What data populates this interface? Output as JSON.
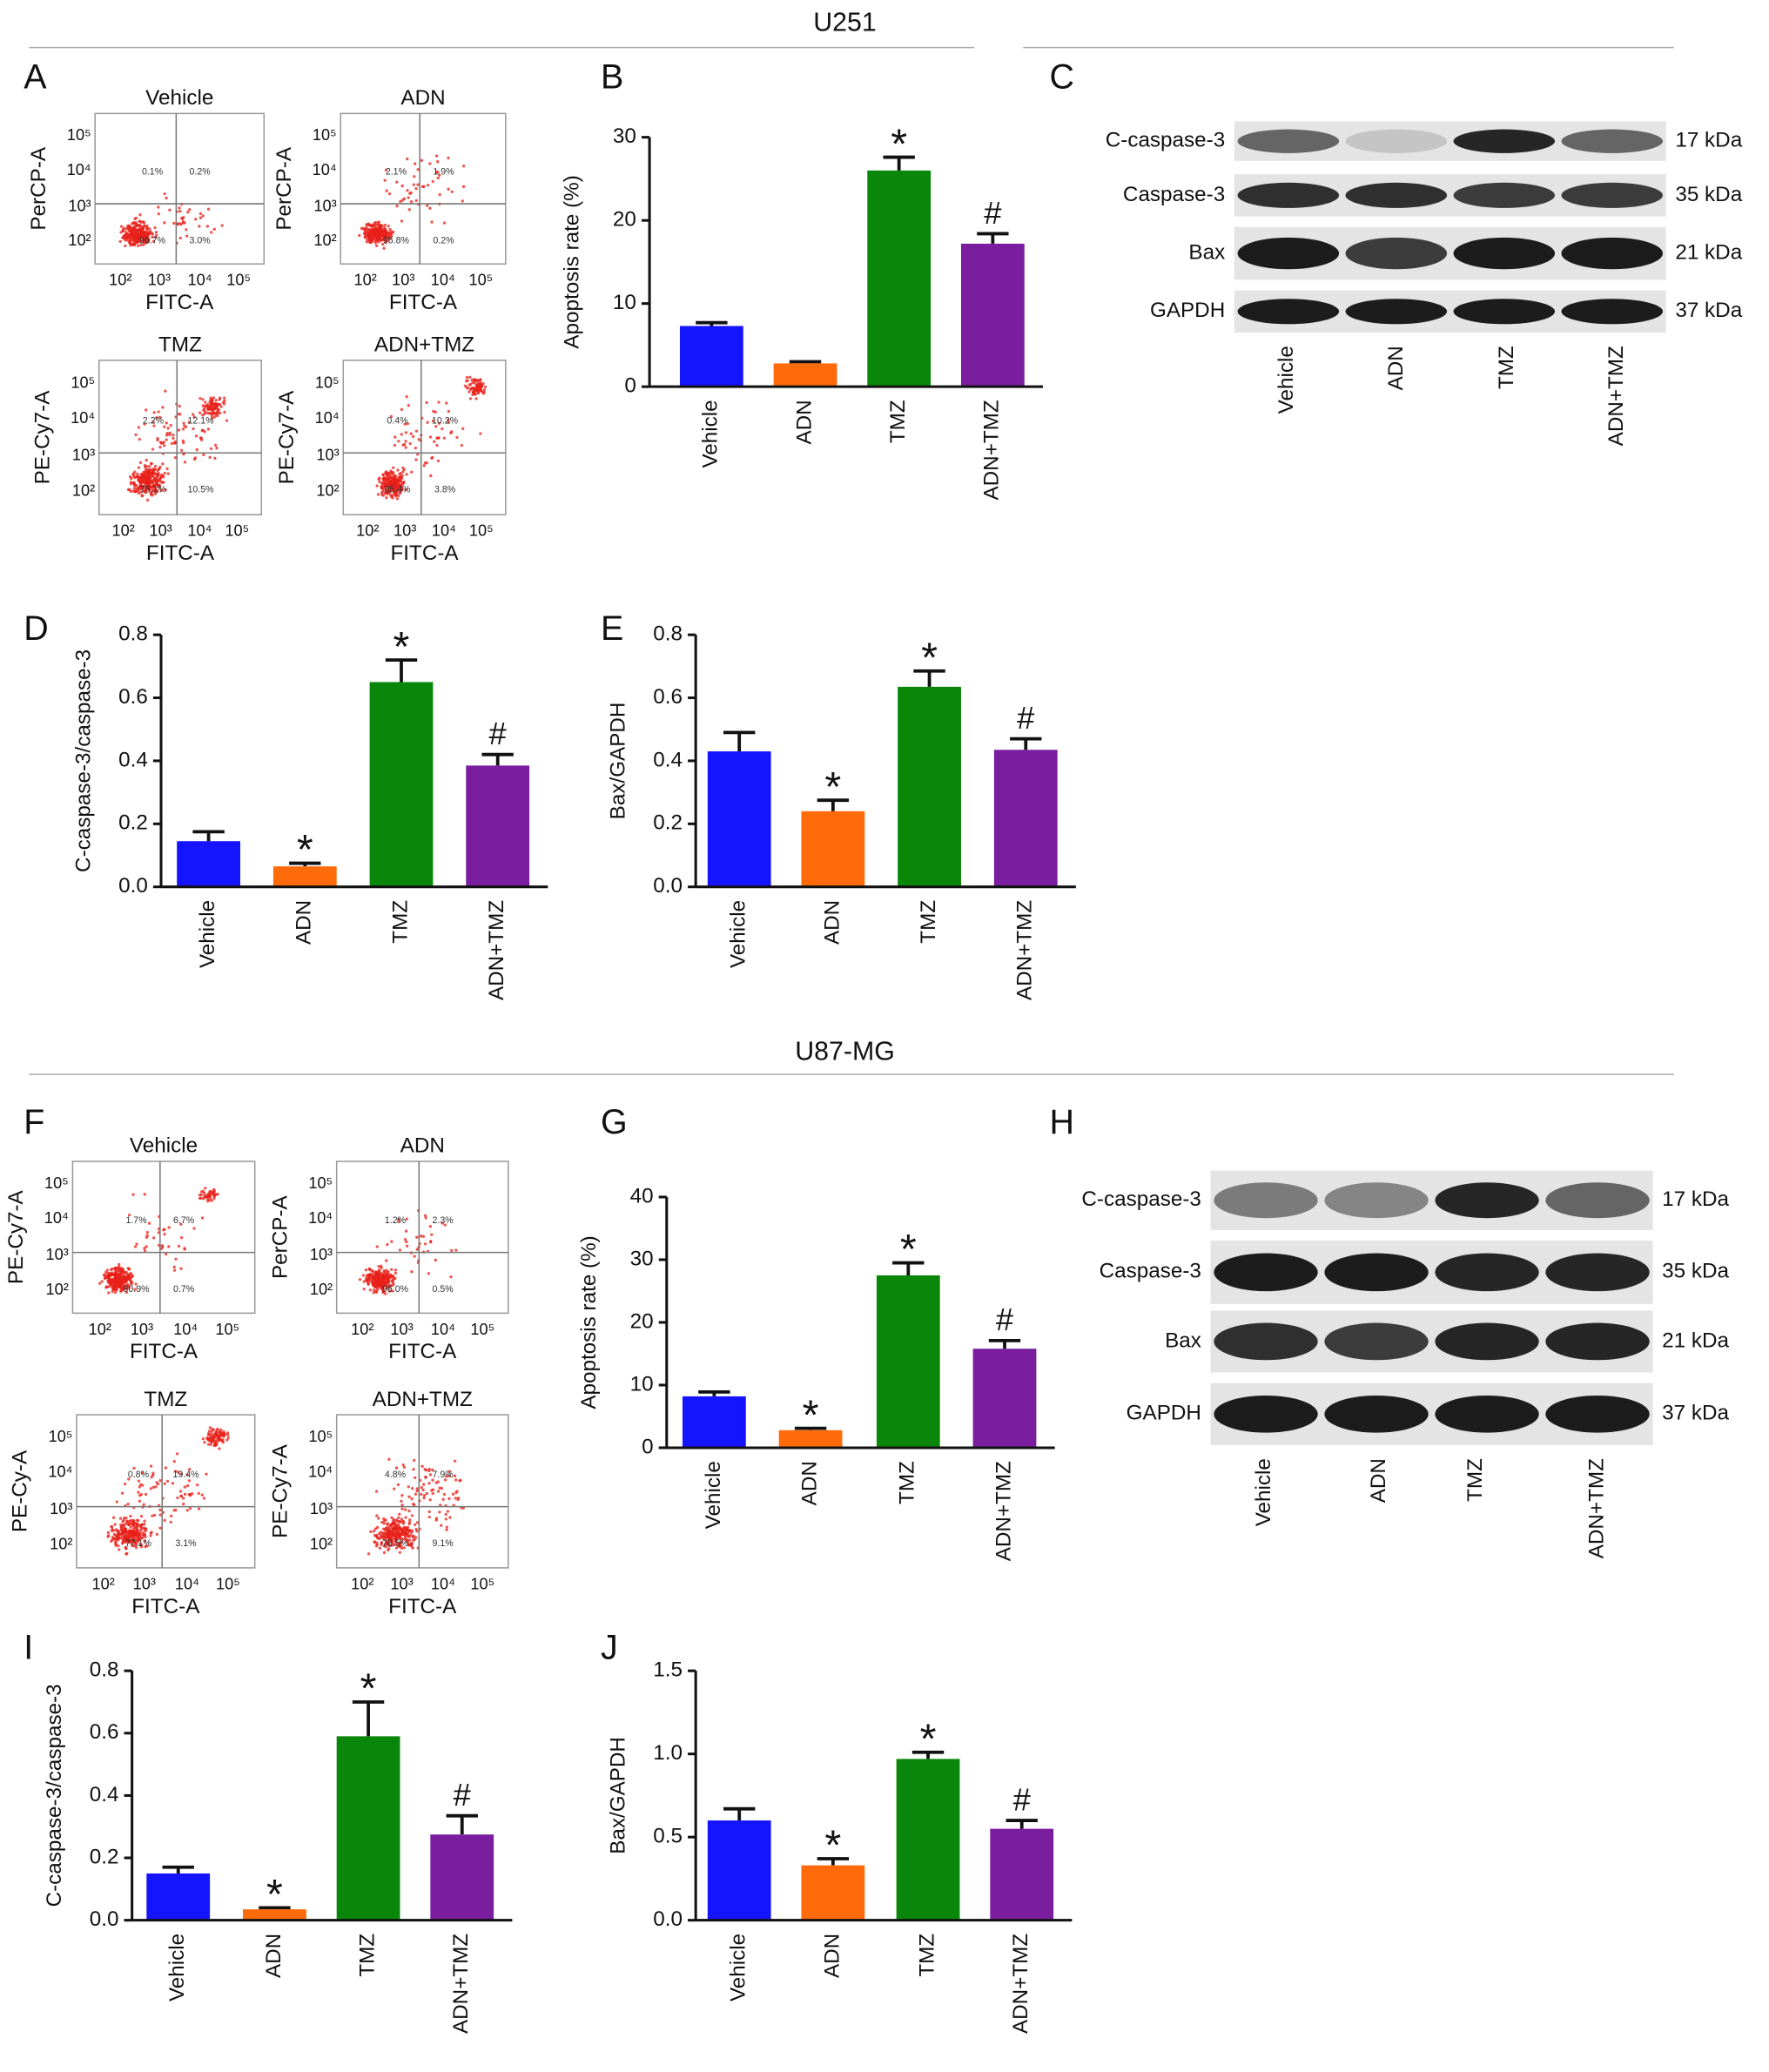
{
  "sections": [
    {
      "title": "U251"
    },
    {
      "title": "U87-MG"
    }
  ],
  "flow_axis_ticks": [
    "10²",
    "10³",
    "10⁴",
    "10⁵"
  ],
  "flow_panels": [
    {
      "letter": "A",
      "plots": [
        {
          "title": "Vehicle",
          "x_label": "FITC-A",
          "y_label": "PerCP-A",
          "quadrants": [
            "0.1%",
            "0.2%",
            "96.7%",
            "3.0%"
          ]
        },
        {
          "title": "ADN",
          "x_label": "FITC-A",
          "y_label": "PerCP-A",
          "quadrants": [
            "2.1%",
            "1.9%",
            "95.8%",
            "0.2%"
          ]
        },
        {
          "title": "TMZ",
          "x_label": "FITC-A",
          "y_label": "PE-Cy7-A",
          "quadrants": [
            "2.2%",
            "12.1%",
            "75.1%",
            "10.5%"
          ]
        },
        {
          "title": "ADN+TMZ",
          "x_label": "FITC-A",
          "y_label": "PE-Cy7-A",
          "quadrants": [
            "0.4%",
            "10.2%",
            "85.4%",
            "3.8%"
          ]
        }
      ]
    },
    {
      "letter": "F",
      "plots": [
        {
          "title": "Vehicle",
          "x_label": "FITC-A",
          "y_label": "PE-Cy7-A",
          "quadrants": [
            "1.7%",
            "6.7%",
            "90.9%",
            "0.7%"
          ]
        },
        {
          "title": "ADN",
          "x_label": "FITC-A",
          "y_label": "PerCP-A",
          "quadrants": [
            "1.2%",
            "2.3%",
            "96.0%",
            "0.5%"
          ]
        },
        {
          "title": "TMZ",
          "x_label": "FITC-A",
          "y_label": "PE-Cy-A",
          "quadrants": [
            "0.8%",
            "19.4%",
            "77.1%",
            "3.1%"
          ]
        },
        {
          "title": "ADN+TMZ",
          "x_label": "FITC-A",
          "y_label": "PE-Cy7-A",
          "quadrants": [
            "4.8%",
            "7.9%",
            "78.5%",
            "9.1%"
          ]
        }
      ]
    }
  ],
  "blots": [
    {
      "letter": "C",
      "rows": [
        {
          "label": "C-caspase-3",
          "size": "17 kDa"
        },
        {
          "label": "Caspase-3",
          "size": "35 kDa"
        },
        {
          "label": "Bax",
          "size": "21 kDa"
        },
        {
          "label": "GAPDH",
          "size": "37 kDa"
        }
      ],
      "lanes": [
        "Vehicle",
        "ADN",
        "TMZ",
        "ADN+TMZ"
      ]
    },
    {
      "letter": "H",
      "rows": [
        {
          "label": "C-caspase-3",
          "size": "17 kDa"
        },
        {
          "label": "Caspase-3",
          "size": "35 kDa"
        },
        {
          "label": "Bax",
          "size": "21 kDa"
        },
        {
          "label": "GAPDH",
          "size": "37 kDa"
        }
      ],
      "lanes": [
        "Vehicle",
        "ADN",
        "TMZ",
        "ADN+TMZ"
      ]
    }
  ],
  "chart_data": [
    {
      "letter": "B",
      "type": "bar",
      "ylabel": "Apoptosis rate (%)",
      "categories": [
        "Vehicle",
        "ADN",
        "TMZ",
        "ADN+TMZ"
      ],
      "values": [
        7.3,
        2.8,
        26,
        17.2
      ],
      "errors": [
        0.4,
        0.2,
        1.6,
        1.2
      ],
      "annotations": [
        null,
        null,
        "*",
        "#"
      ],
      "colors": [
        "#1414ff",
        "#ff6a0a",
        "#0a870a",
        "#7a1d9e"
      ],
      "ylim": [
        0,
        30
      ],
      "yticks": [
        0,
        10,
        20,
        30
      ]
    },
    {
      "letter": "D",
      "type": "bar",
      "ylabel": "C-caspase-3/caspase-3",
      "categories": [
        "Vehicle",
        "ADN",
        "TMZ",
        "ADN+TMZ"
      ],
      "values": [
        0.145,
        0.065,
        0.65,
        0.385
      ],
      "errors": [
        0.03,
        0.01,
        0.07,
        0.035
      ],
      "annotations": [
        null,
        "*",
        "*",
        "#"
      ],
      "colors": [
        "#1414ff",
        "#ff6a0a",
        "#0a870a",
        "#7a1d9e"
      ],
      "ylim": [
        0,
        0.8
      ],
      "yticks": [
        {
          "value": 0,
          "label": "0.0"
        },
        0.2,
        0.4,
        0.6,
        0.8
      ]
    },
    {
      "letter": "E",
      "type": "bar",
      "ylabel": "Bax/GAPDH",
      "categories": [
        "Vehicle",
        "ADN",
        "TMZ",
        "ADN+TMZ"
      ],
      "values": [
        0.43,
        0.24,
        0.635,
        0.435
      ],
      "errors": [
        0.06,
        0.035,
        0.05,
        0.035
      ],
      "annotations": [
        null,
        "*",
        "*",
        "#"
      ],
      "colors": [
        "#1414ff",
        "#ff6a0a",
        "#0a870a",
        "#7a1d9e"
      ],
      "ylim": [
        0,
        0.8
      ],
      "yticks": [
        {
          "value": 0,
          "label": "0.0"
        },
        0.2,
        0.4,
        0.6,
        0.8
      ]
    },
    {
      "letter": "G",
      "type": "bar",
      "ylabel": "Apoptosis rate (%)",
      "categories": [
        "Vehicle",
        "ADN",
        "TMZ",
        "ADN+TMZ"
      ],
      "values": [
        8.2,
        2.8,
        27.5,
        15.8
      ],
      "errors": [
        0.7,
        0.3,
        2,
        1.3
      ],
      "annotations": [
        null,
        "*",
        "*",
        "#"
      ],
      "colors": [
        "#1414ff",
        "#ff6a0a",
        "#0a870a",
        "#7a1d9e"
      ],
      "ylim": [
        0,
        40
      ],
      "yticks": [
        0,
        10,
        20,
        30,
        40
      ]
    },
    {
      "letter": "I",
      "type": "bar",
      "ylabel": "C-caspase-3/caspase-3",
      "categories": [
        "Vehicle",
        "ADN",
        "TMZ",
        "ADN+TMZ"
      ],
      "values": [
        0.15,
        0.035,
        0.59,
        0.275
      ],
      "errors": [
        0.02,
        0.005,
        0.11,
        0.06
      ],
      "annotations": [
        null,
        "*",
        "*",
        "#"
      ],
      "colors": [
        "#1414ff",
        "#ff6a0a",
        "#0a870a",
        "#7a1d9e"
      ],
      "ylim": [
        0,
        0.8
      ],
      "yticks": [
        {
          "value": 0,
          "label": "0.0"
        },
        0.2,
        0.4,
        0.6,
        0.8
      ]
    },
    {
      "letter": "J",
      "type": "bar",
      "ylabel": "Bax/GAPDH",
      "categories": [
        "Vehicle",
        "ADN",
        "TMZ",
        "ADN+TMZ"
      ],
      "values": [
        0.6,
        0.33,
        0.97,
        0.55
      ],
      "errors": [
        0.07,
        0.04,
        0.04,
        0.05
      ],
      "annotations": [
        null,
        "*",
        "*",
        "#"
      ],
      "colors": [
        "#1414ff",
        "#ff6a0a",
        "#0a870a",
        "#7a1d9e"
      ],
      "ylim": [
        0,
        1.5
      ],
      "yticks": [
        {
          "value": 0,
          "label": "0.0"
        },
        0.5,
        {
          "value": 1,
          "label": "1.0"
        },
        1.5
      ]
    }
  ]
}
